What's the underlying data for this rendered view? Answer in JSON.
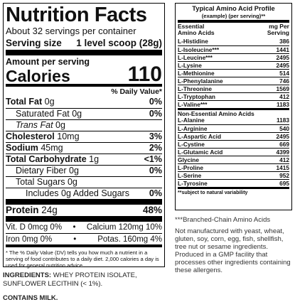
{
  "nutrition": {
    "title": "Nutrition Facts",
    "servings_per_container": "About 32 servings per container",
    "serving_size_label": "Serving size",
    "serving_size_value": "1 level scoop (28g)",
    "amount_per_serving": "Amount per serving",
    "calories_label": "Calories",
    "calories_value": "110",
    "dv_header": "% Daily Value*",
    "rows": [
      {
        "name": "Total Fat",
        "amount": "0g",
        "dv": "0%",
        "bold": true,
        "indent": 0
      },
      {
        "name": "Saturated Fat",
        "amount": "0g",
        "dv": "0%",
        "bold": false,
        "indent": 1
      },
      {
        "name": "Trans Fat",
        "amount": "0g",
        "dv": "",
        "bold": false,
        "indent": 1
      },
      {
        "name": "Cholesterol",
        "amount": "10mg",
        "dv": "3%",
        "bold": true,
        "indent": 0
      },
      {
        "name": "Sodium",
        "amount": "45mg",
        "dv": "2%",
        "bold": true,
        "indent": 0
      },
      {
        "name": "Total Carbohydrate",
        "amount": "1g",
        "dv": "<1%",
        "bold": true,
        "indent": 0
      },
      {
        "name": "Dietary Fiber",
        "amount": "0g",
        "dv": "0%",
        "bold": false,
        "indent": 1
      },
      {
        "name": "Total Sugars",
        "amount": "0g",
        "dv": "",
        "bold": false,
        "indent": 1
      },
      {
        "name": "Includes 0g Added Sugars",
        "amount": "",
        "dv": "0%",
        "bold": false,
        "indent": 2
      }
    ],
    "protein_label": "Protein",
    "protein_amount": "24g",
    "protein_dv": "48%",
    "vitamins": [
      {
        "left": "Vit. D 0mcg 0%",
        "right": "Calcium 120mg 10%"
      },
      {
        "left": "Iron 0mg 0%",
        "right": "Potas. 160mg 4%"
      }
    ],
    "footnote": "* The % Daily Value (DV) tells you how much a nutrient in a serving of food contributes to a daily diet. 2,000 calories a day is used for general nutrition advice."
  },
  "ingredients": {
    "label": "INGREDIENTS:",
    "text": "WHEY PROTEIN ISOLATE, SUNFLOWER LECITHIN (< 1%)."
  },
  "contains": "CONTAINS MILK.",
  "amino": {
    "title": "Typical Amino Acid Profile",
    "subtitle": "(example) (per serving)**",
    "col_left_1": "Essential",
    "col_left_2": "Amino Acids",
    "col_right_1": "mg Per",
    "col_right_2": "Serving",
    "essential": [
      {
        "name": "L-Histidine",
        "mg": "386"
      },
      {
        "name": "L-Isoleucine***",
        "mg": "1441"
      },
      {
        "name": "L-Leucine***",
        "mg": "2495"
      },
      {
        "name": "L-Lysine",
        "mg": "2495"
      },
      {
        "name": "L-Methionine",
        "mg": "514"
      },
      {
        "name": "L-Phenylalanine",
        "mg": "746"
      },
      {
        "name": "L-Threonine",
        "mg": "1569"
      },
      {
        "name": "L-Tryptophan",
        "mg": "412"
      },
      {
        "name": "L-Valine***",
        "mg": "1183"
      }
    ],
    "non_essential_header": "Non-Essential Amino Acids",
    "non_essential": [
      {
        "name": "L-Alanine",
        "mg": "1183"
      },
      {
        "name": "L-Arginine",
        "mg": "540"
      },
      {
        "name": "L-Aspartic Acid",
        "mg": "2495"
      },
      {
        "name": "L-Cystine",
        "mg": "669"
      },
      {
        "name": "L-Glutamic Acid",
        "mg": "4399"
      },
      {
        "name": "Glycine",
        "mg": "412"
      },
      {
        "name": "L-Proline",
        "mg": "1415"
      },
      {
        "name": "L-Serine",
        "mg": "952"
      },
      {
        "name": "L-Tyrosine",
        "mg": "695"
      }
    ],
    "note": "**subject to natural variability"
  },
  "bcaa_note": "***Branched-Chain Amino Acids",
  "allergen_statement": "Not manufactured with yeast, wheat, gluten, soy, corn, egg, fish, shellfish, tree nut or sesame ingredients. Produced in a GMP facility that processes other ingredients containing these allergens."
}
